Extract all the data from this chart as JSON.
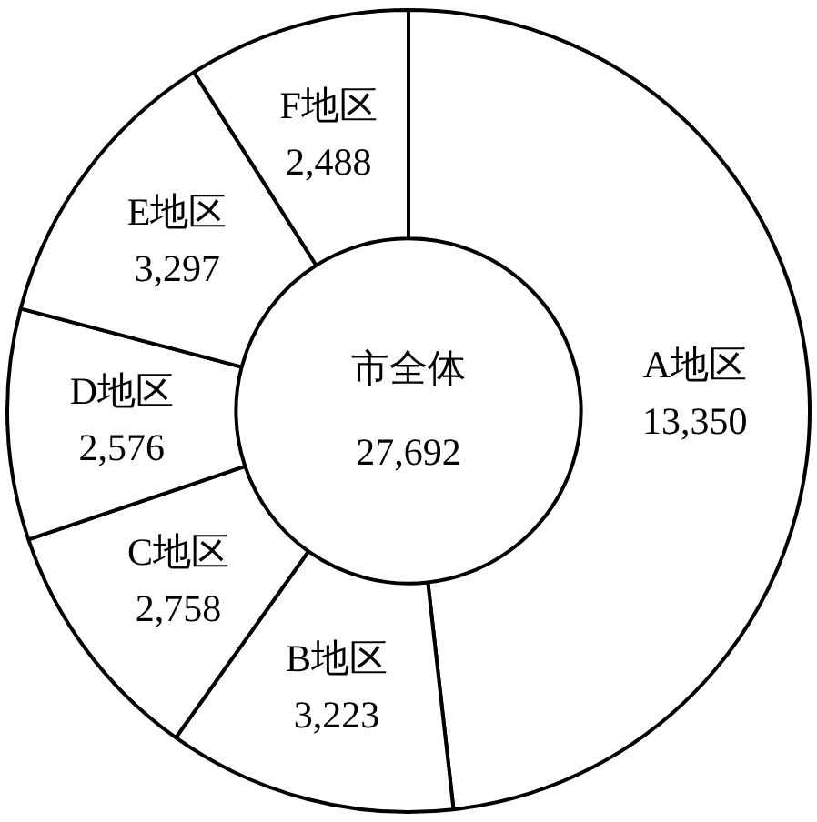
{
  "chart_data": {
    "type": "donut",
    "title": "市全体",
    "subtitle": "27,692",
    "categories": [
      "A地区",
      "B地区",
      "C地区",
      "D地区",
      "E地区",
      "F地区"
    ],
    "values": [
      13350,
      3223,
      2758,
      2576,
      3297,
      2488
    ],
    "colors": [
      "#ffffff",
      "#ffffff",
      "#ffffff",
      "#ffffff",
      "#ffffff",
      "#ffffff"
    ],
    "value_labels": [
      "13,350",
      "3,223",
      "2,758",
      "2,576",
      "3,297",
      "2,488"
    ],
    "legend": false
  }
}
